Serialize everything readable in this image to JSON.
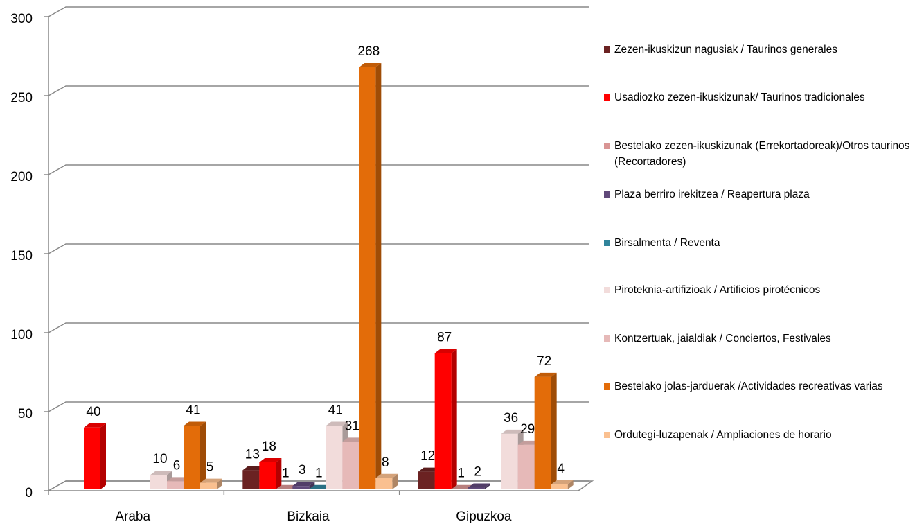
{
  "chart_data": {
    "type": "bar3d",
    "categories": [
      "Araba",
      "Bizkaia",
      "Gipuzkoa"
    ],
    "series": [
      {
        "name": "Zezen-ikuskizun nagusiak / Taurinos generales",
        "color": "#6b2222",
        "values": [
          null,
          13,
          12
        ]
      },
      {
        "name": "Usadiozko zezen-ikuskizunak/ Taurinos tradicionales",
        "color": "#ff0000",
        "values": [
          40,
          18,
          87
        ]
      },
      {
        "name": "Bestelako zezen-ikuskizunak (Errekortadoreak)/Otros taurinos (Recortadores)",
        "color": "#d99594",
        "values": [
          null,
          1,
          1
        ]
      },
      {
        "name": "Plaza berriro irekitzea  / Reapertura plaza",
        "color": "#60497a",
        "values": [
          null,
          3,
          2
        ]
      },
      {
        "name": "Birsalmenta / Reventa",
        "color": "#31849b",
        "values": [
          null,
          1,
          null
        ]
      },
      {
        "name": "Piroteknia-artifizioak / Artificios pirotécnicos",
        "color": "#f2dcdb",
        "values": [
          10,
          41,
          36
        ]
      },
      {
        "name": "Kontzertuak, jaialdiak / Conciertos, Festivales",
        "color": "#e6b9b8",
        "values": [
          6,
          31,
          29
        ]
      },
      {
        "name": "Bestelako jolas-jarduerak /Actividades recreativas varias",
        "color": "#e36c09",
        "values": [
          41,
          268,
          72
        ]
      },
      {
        "name": "Ordutegi-luzapenak / Ampliaciones de horario",
        "color": "#fac090",
        "values": [
          5,
          8,
          4
        ]
      }
    ],
    "ylim": [
      0,
      300
    ],
    "yticks": [
      0,
      50,
      100,
      150,
      200,
      250,
      300
    ],
    "grid": true,
    "legend": "right"
  }
}
